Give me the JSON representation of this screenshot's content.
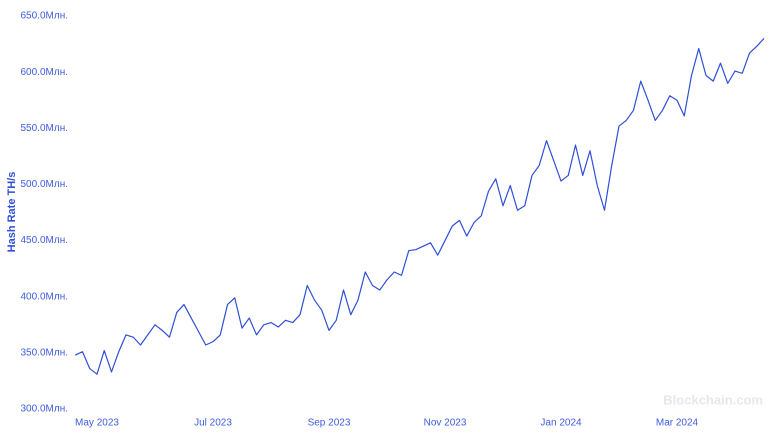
{
  "chart_data": {
    "type": "line",
    "y_label": "Hash Rate TH/s",
    "watermark": "Blockchain.com",
    "color": "#2f4fd8",
    "categories": [
      null,
      null,
      null,
      "May 2023",
      null,
      null,
      null,
      null,
      null,
      null,
      null,
      null,
      null,
      null,
      null,
      null,
      null,
      null,
      null,
      "Jul 2023",
      null,
      null,
      null,
      null,
      null,
      null,
      null,
      null,
      null,
      null,
      null,
      null,
      null,
      null,
      null,
      "Sep 2023",
      null,
      null,
      null,
      null,
      null,
      null,
      null,
      null,
      null,
      null,
      null,
      null,
      null,
      null,
      null,
      "Nov 2023",
      null,
      null,
      null,
      null,
      null,
      null,
      null,
      null,
      null,
      null,
      null,
      null,
      null,
      null,
      null,
      "Jan 2024",
      null,
      null,
      null,
      null,
      null,
      null,
      null,
      null,
      null,
      null,
      null,
      null,
      null,
      null,
      null,
      "Mar 2024",
      null,
      null,
      null,
      null,
      null,
      null,
      null,
      null,
      null,
      null,
      null,
      null
    ],
    "values": [
      348,
      351,
      336,
      331,
      352,
      333,
      351,
      366,
      364,
      357,
      366,
      375,
      370,
      364,
      386,
      393,
      381,
      369,
      357,
      360,
      366,
      393,
      399,
      372,
      381,
      366,
      375,
      377,
      373,
      379,
      377,
      384,
      410,
      397,
      388,
      370,
      379,
      406,
      384,
      397,
      422,
      410,
      406,
      415,
      422,
      419,
      441,
      442,
      445,
      448,
      437,
      450,
      463,
      468,
      454,
      466,
      472,
      494,
      505,
      481,
      499,
      477,
      481,
      508,
      517,
      539,
      521,
      503,
      508,
      535,
      508,
      530,
      499,
      477,
      517,
      552,
      557,
      566,
      592,
      575,
      557,
      566,
      579,
      575,
      561,
      597,
      621,
      597,
      592,
      608,
      590,
      601,
      599,
      617,
      623,
      630
    ],
    "ylim": [
      300,
      650
    ],
    "yticks": [
      {
        "value": 300,
        "label": "300.0Млн."
      },
      {
        "value": 350,
        "label": "350.0Млн."
      },
      {
        "value": 400,
        "label": "400.0Млн."
      },
      {
        "value": 450,
        "label": "450.0Млн."
      },
      {
        "value": 500,
        "label": "500.0Млн."
      },
      {
        "value": 550,
        "label": "550.0Млн."
      },
      {
        "value": 600,
        "label": "600.0Млн."
      },
      {
        "value": 650,
        "label": "650.0Млн."
      }
    ]
  }
}
